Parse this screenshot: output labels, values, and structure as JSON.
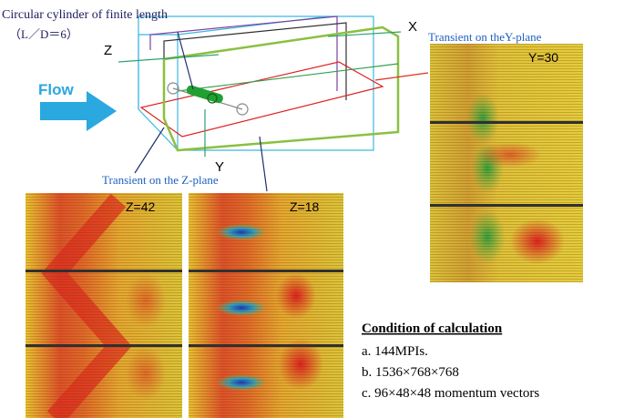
{
  "diagram": {
    "box": {
      "title": "Circular cylinder of finite length",
      "ratio": "（L／D＝6）",
      "axis_z": "Z",
      "axis_x": "X",
      "axis_y": "Y",
      "flow": "Flow"
    },
    "y_plane": {
      "caption": "Transient on theY-plane",
      "label": "Y=30"
    },
    "z_plane": {
      "caption": "Transient on the Z-plane",
      "panels": [
        "Z=42",
        "Z=18"
      ]
    },
    "conditions": {
      "title": "Condition of calculation",
      "items": [
        "a. 144MPIs.",
        "b. 1536×768×768",
        "c. 96×48×48 momentum vectors"
      ]
    }
  }
}
